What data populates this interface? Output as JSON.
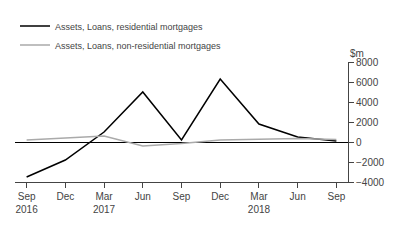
{
  "chart_data": {
    "type": "line",
    "categories": [
      "Sep\n2016",
      "Dec",
      "Mar\n2017",
      "Jun",
      "Sep",
      "Dec",
      "Mar\n2018",
      "Jun",
      "Sep"
    ],
    "series": [
      {
        "name": "Assets, Loans, residential mortgages",
        "color": "#000000",
        "values": [
          -3500,
          -1800,
          1000,
          5000,
          200,
          6300,
          1800,
          500,
          100
        ]
      },
      {
        "name": "Assets, Loans, non-residential mortgages",
        "color": "#aaaaaa",
        "values": [
          200,
          400,
          600,
          -400,
          -150,
          200,
          250,
          350,
          250
        ]
      }
    ],
    "ylabel": "$m",
    "ylim": [
      -4000,
      8000
    ],
    "yticks": [
      {
        "value": -4000,
        "label": "−4000"
      },
      {
        "value": -2000,
        "label": "−2000"
      },
      0,
      2000,
      4000,
      6000,
      8000
    ],
    "grid": false,
    "legend": "upper left"
  }
}
